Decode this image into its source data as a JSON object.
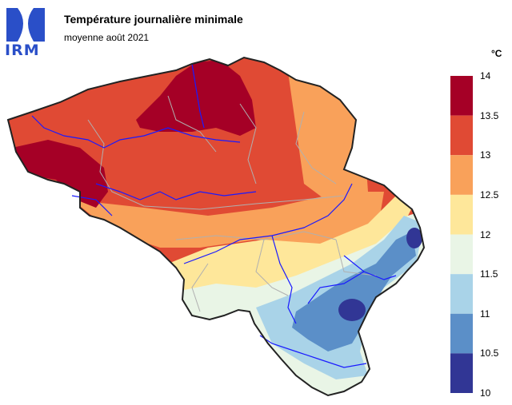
{
  "header": {
    "logo_text": "IRM",
    "title": "Température journalière minimale",
    "subtitle": "moyenne août 2021"
  },
  "legend": {
    "unit": "°C",
    "ticks": [
      "14",
      "13.5",
      "13",
      "12.5",
      "12",
      "11.5",
      "11",
      "10.5",
      "10"
    ],
    "bins": [
      {
        "range": "13.5 – 14",
        "color": "#a50026"
      },
      {
        "range": "13 – 13.5",
        "color": "#e04a34"
      },
      {
        "range": "12.5 – 13",
        "color": "#f9a15a"
      },
      {
        "range": "12 – 12.5",
        "color": "#fee79a"
      },
      {
        "range": "11.5 – 12",
        "color": "#e9f5e6"
      },
      {
        "range": "11 – 11.5",
        "color": "#a9d3e8"
      },
      {
        "range": "10.5 – 11",
        "color": "#5b8fc8"
      },
      {
        "range": "10 – 10.5",
        "color": "#313695"
      }
    ]
  },
  "colors": {
    "rivers": "#1a1aff",
    "provinces": "#b0b0b0",
    "border": "#222222"
  }
}
